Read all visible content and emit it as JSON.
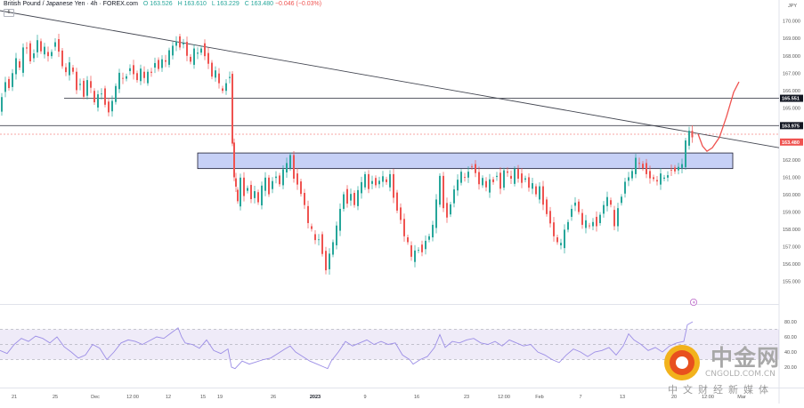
{
  "header": {
    "symbol": "British Pound / Japanese Yen · 4h · FOREX.com",
    "open": "O 163.526",
    "high": "H 163.610",
    "low": "L 163.229",
    "close": "C 163.480",
    "change": "−0.046 (−0.03%)",
    "interval_badge": "5"
  },
  "currency": "JPY",
  "price_labels": {
    "resistance": "165.551",
    "level": "163.975",
    "last": "163.480"
  },
  "watermark": {
    "cn": "中金网",
    "domain": "CNGOLD.COM.CN",
    "sub": "中文财经新媒体"
  },
  "colors": {
    "up": "#26a69a",
    "down": "#ef5350",
    "zone": "#bcc8f5",
    "rsi": "#9c8ee6",
    "projection": "#ef5350"
  },
  "chart_data": [
    {
      "type": "candlestick",
      "title": "British Pound / Japanese Yen · 4h · FOREX.com",
      "ylim": [
        153.8,
        170.6
      ],
      "y_ticks": [
        155.0,
        156.0,
        157.0,
        158.0,
        159.0,
        160.0,
        161.0,
        162.0,
        163.0,
        164.0,
        165.0,
        166.0,
        167.0,
        168.0,
        169.0,
        170.0
      ],
      "x_ticks": [
        "21",
        "25",
        "Dec",
        "12:00",
        "12",
        "15",
        "19",
        "26",
        "2023",
        "9",
        "16",
        "23",
        "12:00",
        "Feb",
        "7",
        "13",
        "20",
        "12:00",
        "Mar"
      ],
      "close_path": [
        [
          0,
          164.6
        ],
        [
          4,
          165.8
        ],
        [
          8,
          166.6
        ],
        [
          12,
          166.2
        ],
        [
          16,
          167.0
        ],
        [
          20,
          167.8
        ],
        [
          24,
          167.2
        ],
        [
          28,
          168.3
        ],
        [
          32,
          168.6
        ],
        [
          36,
          167.8
        ],
        [
          40,
          168.2
        ],
        [
          44,
          168.9
        ],
        [
          48,
          168.2
        ],
        [
          52,
          168.4
        ],
        [
          56,
          167.8
        ],
        [
          60,
          168.4
        ],
        [
          64,
          168.9
        ],
        [
          68,
          168.3
        ],
        [
          72,
          167.4
        ],
        [
          76,
          167.0
        ],
        [
          80,
          167.5
        ],
        [
          84,
          166.9
        ],
        [
          88,
          166.2
        ],
        [
          92,
          166.5
        ],
        [
          96,
          165.7
        ],
        [
          100,
          166.6
        ],
        [
          104,
          166.1
        ],
        [
          108,
          165.2
        ],
        [
          112,
          165.6
        ],
        [
          116,
          166.0
        ],
        [
          120,
          165.3
        ],
        [
          124,
          164.8
        ],
        [
          128,
          165.4
        ],
        [
          132,
          166.2
        ],
        [
          136,
          166.9
        ],
        [
          140,
          166.5
        ],
        [
          144,
          167.0
        ],
        [
          148,
          167.4
        ],
        [
          152,
          167.0
        ],
        [
          156,
          166.6
        ],
        [
          160,
          167.2
        ],
        [
          164,
          166.6
        ],
        [
          168,
          166.9
        ],
        [
          172,
          167.2
        ],
        [
          176,
          167.7
        ],
        [
          180,
          167.3
        ],
        [
          184,
          167.8
        ],
        [
          188,
          167.6
        ],
        [
          192,
          168.2
        ],
        [
          196,
          168.4
        ],
        [
          200,
          169.0
        ],
        [
          204,
          168.6
        ],
        [
          208,
          168.8
        ],
        [
          212,
          168.0
        ],
        [
          216,
          167.6
        ],
        [
          220,
          168.3
        ],
        [
          224,
          168.0
        ],
        [
          228,
          168.6
        ],
        [
          232,
          168.1
        ],
        [
          236,
          167.6
        ],
        [
          240,
          166.8
        ],
        [
          244,
          167.1
        ],
        [
          248,
          166.3
        ],
        [
          252,
          165.8
        ],
        [
          256,
          166.6
        ],
        [
          260,
          166.9
        ],
        [
          262,
          163.0
        ],
        [
          264,
          161.0
        ],
        [
          266,
          160.4
        ],
        [
          268,
          159.5
        ],
        [
          272,
          160.8
        ],
        [
          276,
          160.1
        ],
        [
          280,
          160.5
        ],
        [
          284,
          159.8
        ],
        [
          288,
          160.2
        ],
        [
          292,
          159.5
        ],
        [
          296,
          160.4
        ],
        [
          300,
          160.8
        ],
        [
          304,
          160.2
        ],
        [
          308,
          160.9
        ],
        [
          312,
          161.1
        ],
        [
          316,
          160.6
        ],
        [
          320,
          161.4
        ],
        [
          324,
          161.7
        ],
        [
          328,
          162.1
        ],
        [
          332,
          161.1
        ],
        [
          336,
          160.7
        ],
        [
          340,
          160.1
        ],
        [
          344,
          159.4
        ],
        [
          348,
          158.3
        ],
        [
          352,
          157.9
        ],
        [
          356,
          157.2
        ],
        [
          360,
          157.6
        ],
        [
          364,
          156.7
        ],
        [
          368,
          155.7
        ],
        [
          372,
          156.6
        ],
        [
          376,
          157.2
        ],
        [
          380,
          158.1
        ],
        [
          384,
          159.0
        ],
        [
          388,
          160.2
        ],
        [
          392,
          159.6
        ],
        [
          396,
          160.1
        ],
        [
          400,
          159.4
        ],
        [
          404,
          160.2
        ],
        [
          408,
          160.6
        ],
        [
          412,
          161.0
        ],
        [
          416,
          160.5
        ],
        [
          420,
          160.9
        ],
        [
          424,
          160.6
        ],
        [
          428,
          160.8
        ],
        [
          432,
          161.0
        ],
        [
          436,
          160.6
        ],
        [
          440,
          161.0
        ],
        [
          444,
          160.0
        ],
        [
          448,
          159.2
        ],
        [
          452,
          158.6
        ],
        [
          456,
          157.6
        ],
        [
          460,
          157.2
        ],
        [
          464,
          156.3
        ],
        [
          468,
          156.6
        ],
        [
          472,
          157.0
        ],
        [
          476,
          156.8
        ],
        [
          480,
          157.4
        ],
        [
          484,
          157.6
        ],
        [
          488,
          158.2
        ],
        [
          492,
          159.6
        ],
        [
          496,
          160.9
        ],
        [
          500,
          159.4
        ],
        [
          504,
          158.8
        ],
        [
          508,
          159.5
        ],
        [
          512,
          160.3
        ],
        [
          516,
          160.8
        ],
        [
          520,
          161.2
        ],
        [
          524,
          160.8
        ],
        [
          528,
          161.5
        ],
        [
          532,
          161.7
        ],
        [
          536,
          161.3
        ],
        [
          540,
          160.6
        ],
        [
          544,
          160.9
        ],
        [
          548,
          160.3
        ],
        [
          552,
          160.7
        ],
        [
          556,
          160.9
        ],
        [
          560,
          161.2
        ],
        [
          564,
          160.4
        ],
        [
          568,
          161.4
        ],
        [
          572,
          161.2
        ],
        [
          576,
          160.8
        ],
        [
          580,
          161.3
        ],
        [
          584,
          161.1
        ],
        [
          588,
          160.8
        ],
        [
          592,
          161.0
        ],
        [
          596,
          160.4
        ],
        [
          600,
          160.6
        ],
        [
          604,
          159.9
        ],
        [
          608,
          160.3
        ],
        [
          612,
          159.6
        ],
        [
          616,
          159.0
        ],
        [
          620,
          158.4
        ],
        [
          624,
          157.6
        ],
        [
          628,
          157.2
        ],
        [
          632,
          157.1
        ],
        [
          636,
          157.8
        ],
        [
          640,
          158.6
        ],
        [
          644,
          159.3
        ],
        [
          648,
          159.6
        ],
        [
          652,
          159.0
        ],
        [
          656,
          158.2
        ],
        [
          660,
          158.4
        ],
        [
          664,
          158.0
        ],
        [
          668,
          158.6
        ],
        [
          672,
          158.3
        ],
        [
          676,
          158.9
        ],
        [
          680,
          159.4
        ],
        [
          684,
          159.8
        ],
        [
          688,
          159.3
        ],
        [
          692,
          158.0
        ],
        [
          696,
          159.4
        ],
        [
          700,
          160.0
        ],
        [
          704,
          160.8
        ],
        [
          708,
          161.0
        ],
        [
          712,
          161.3
        ],
        [
          716,
          162.0
        ],
        [
          720,
          161.6
        ],
        [
          724,
          161.7
        ],
        [
          728,
          161.3
        ],
        [
          732,
          161.0
        ],
        [
          736,
          160.9
        ],
        [
          740,
          160.7
        ],
        [
          744,
          161.1
        ],
        [
          748,
          160.8
        ],
        [
          752,
          161.3
        ],
        [
          756,
          161.5
        ],
        [
          760,
          161.4
        ],
        [
          764,
          161.6
        ],
        [
          768,
          161.7
        ],
        [
          772,
          163.0
        ],
        [
          776,
          163.5
        ],
        [
          779,
          163.48
        ]
      ],
      "horizontal_lines": [
        165.551,
        163.975
      ],
      "dashed_line": 163.48,
      "zone": {
        "x_range": [
          222,
          823
        ],
        "y_range": [
          161.5,
          162.4
        ]
      },
      "trendline": [
        [
          0,
          170.6
        ],
        [
          875,
          162.7
        ]
      ],
      "projection": [
        [
          784,
          163.5
        ],
        [
          789,
          162.8
        ],
        [
          794,
          162.5
        ],
        [
          800,
          162.7
        ],
        [
          808,
          163.3
        ],
        [
          816,
          164.5
        ],
        [
          824,
          165.9
        ],
        [
          830,
          166.5
        ]
      ],
      "annotations": [
        "165.551",
        "163.975",
        "163.480"
      ]
    },
    {
      "type": "line",
      "title": "RSI",
      "ylim": [
        0,
        100
      ],
      "y_ticks": [
        80.0,
        60.0,
        40.0,
        20.0
      ],
      "band": [
        30,
        70
      ],
      "values": [
        [
          0,
          42
        ],
        [
          8,
          38
        ],
        [
          16,
          50
        ],
        [
          24,
          58
        ],
        [
          32,
          54
        ],
        [
          40,
          61
        ],
        [
          48,
          58
        ],
        [
          56,
          52
        ],
        [
          64,
          60
        ],
        [
          72,
          47
        ],
        [
          80,
          40
        ],
        [
          88,
          32
        ],
        [
          96,
          36
        ],
        [
          104,
          50
        ],
        [
          112,
          45
        ],
        [
          120,
          30
        ],
        [
          128,
          40
        ],
        [
          136,
          52
        ],
        [
          144,
          56
        ],
        [
          152,
          54
        ],
        [
          160,
          50
        ],
        [
          168,
          55
        ],
        [
          176,
          60
        ],
        [
          184,
          58
        ],
        [
          192,
          65
        ],
        [
          200,
          72
        ],
        [
          204,
          60
        ],
        [
          208,
          52
        ],
        [
          216,
          50
        ],
        [
          224,
          45
        ],
        [
          232,
          56
        ],
        [
          240,
          42
        ],
        [
          248,
          38
        ],
        [
          256,
          44
        ],
        [
          260,
          20
        ],
        [
          264,
          18
        ],
        [
          272,
          28
        ],
        [
          280,
          24
        ],
        [
          288,
          27
        ],
        [
          296,
          30
        ],
        [
          304,
          32
        ],
        [
          312,
          38
        ],
        [
          320,
          44
        ],
        [
          326,
          48
        ],
        [
          332,
          40
        ],
        [
          340,
          34
        ],
        [
          348,
          28
        ],
        [
          356,
          24
        ],
        [
          364,
          20
        ],
        [
          368,
          18
        ],
        [
          372,
          28
        ],
        [
          380,
          40
        ],
        [
          388,
          54
        ],
        [
          396,
          48
        ],
        [
          404,
          52
        ],
        [
          412,
          56
        ],
        [
          420,
          50
        ],
        [
          428,
          54
        ],
        [
          436,
          50
        ],
        [
          444,
          52
        ],
        [
          452,
          36
        ],
        [
          460,
          30
        ],
        [
          464,
          24
        ],
        [
          472,
          30
        ],
        [
          480,
          34
        ],
        [
          488,
          46
        ],
        [
          494,
          63
        ],
        [
          500,
          46
        ],
        [
          508,
          54
        ],
        [
          516,
          52
        ],
        [
          524,
          56
        ],
        [
          532,
          58
        ],
        [
          540,
          52
        ],
        [
          548,
          50
        ],
        [
          556,
          54
        ],
        [
          564,
          48
        ],
        [
          572,
          56
        ],
        [
          580,
          52
        ],
        [
          588,
          48
        ],
        [
          596,
          50
        ],
        [
          604,
          40
        ],
        [
          612,
          36
        ],
        [
          620,
          30
        ],
        [
          628,
          26
        ],
        [
          636,
          36
        ],
        [
          644,
          44
        ],
        [
          652,
          40
        ],
        [
          660,
          34
        ],
        [
          668,
          40
        ],
        [
          676,
          42
        ],
        [
          684,
          46
        ],
        [
          692,
          36
        ],
        [
          700,
          48
        ],
        [
          706,
          64
        ],
        [
          712,
          56
        ],
        [
          720,
          50
        ],
        [
          728,
          42
        ],
        [
          736,
          46
        ],
        [
          744,
          40
        ],
        [
          752,
          48
        ],
        [
          760,
          52
        ],
        [
          768,
          54
        ],
        [
          772,
          76
        ],
        [
          778,
          80
        ]
      ]
    }
  ]
}
